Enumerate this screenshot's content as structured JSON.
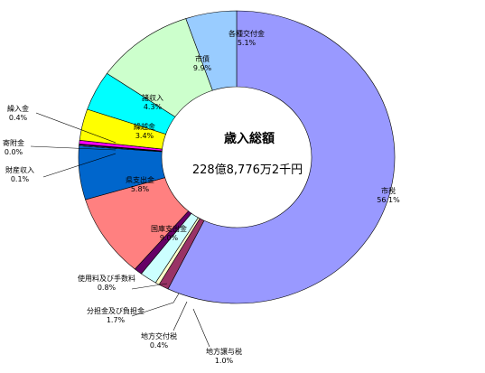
{
  "chart_data": {
    "type": "donut",
    "center_title": "歳入総額",
    "center_total": "228億8,776万2千円",
    "slices": [
      {
        "name": "市税",
        "value": 56.1,
        "pct_label": "56.1%",
        "color": "#9999ff"
      },
      {
        "name": "地方譲与税",
        "value": 1.0,
        "pct_label": "1.0%",
        "color": "#993366"
      },
      {
        "name": "地方交付税",
        "value": 0.4,
        "pct_label": "0.4%",
        "color": "#ffffcc"
      },
      {
        "name": "分担金及び負担金",
        "value": 1.7,
        "pct_label": "1.7%",
        "color": "#ccffff"
      },
      {
        "name": "使用料及び手数料",
        "value": 0.8,
        "pct_label": "0.8%",
        "color": "#660066"
      },
      {
        "name": "国庫支出金",
        "value": 9.0,
        "pct_label": "9.0%",
        "color": "#ff8080"
      },
      {
        "name": "県支出金",
        "value": 5.8,
        "pct_label": "5.8%",
        "color": "#0066cc"
      },
      {
        "name": "財産収入",
        "value": 0.1,
        "pct_label": "0.1%",
        "color": "#ccccff"
      },
      {
        "name": "寄附金",
        "value": 0.0,
        "pct_label": "0.0%",
        "color": "#000080"
      },
      {
        "name": "繰入金",
        "value": 0.4,
        "pct_label": "0.4%",
        "color": "#ff00ff"
      },
      {
        "name": "繰越金",
        "value": 3.4,
        "pct_label": "3.4%",
        "color": "#ffff00"
      },
      {
        "name": "諸収入",
        "value": 4.3,
        "pct_label": "4.3%",
        "color": "#00ffff"
      },
      {
        "name": "市債",
        "value": 9.9,
        "pct_label": "9.9%",
        "color": "#ccffcc"
      },
      {
        "name": "各種交付金",
        "value": 5.1,
        "pct_label": "5.1%",
        "color": "#99ccff"
      }
    ]
  }
}
